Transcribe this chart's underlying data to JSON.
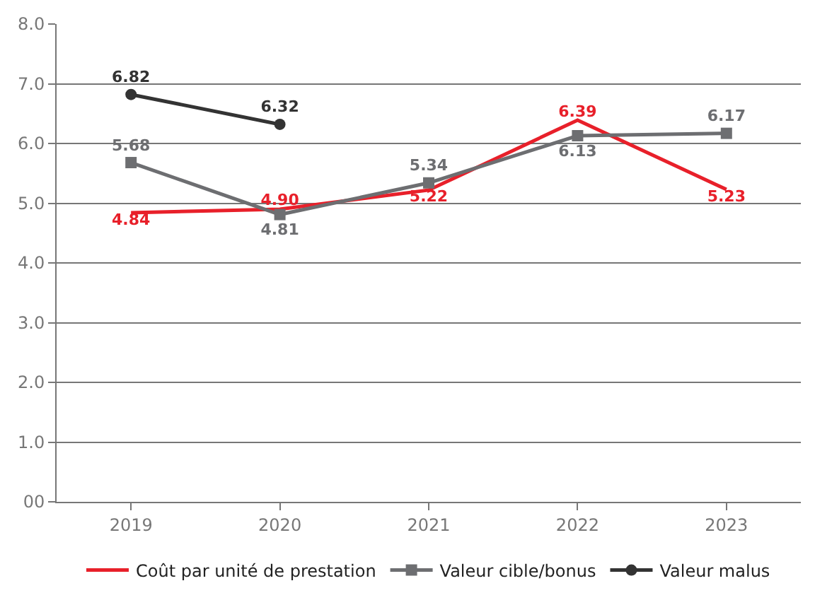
{
  "chart_data": {
    "type": "line",
    "categories": [
      "2019",
      "2020",
      "2021",
      "2022",
      "2023"
    ],
    "series": [
      {
        "name": "Coût par unité de prestation",
        "color": "#e8202a",
        "marker": "none",
        "values": [
          4.84,
          4.9,
          5.22,
          6.39,
          5.23
        ],
        "value_labels": [
          "4.84",
          "4.90",
          "5.22",
          "6.39",
          "5.23"
        ]
      },
      {
        "name": "Valeur cible/bonus",
        "color": "#6d6e71",
        "marker": "square",
        "values": [
          5.68,
          4.81,
          5.34,
          6.13,
          6.17
        ],
        "value_labels": [
          "5.68",
          "4.81",
          "5.34",
          "6.13",
          "6.17"
        ]
      },
      {
        "name": "Valeur malus",
        "color": "#333333",
        "marker": "circle",
        "values": [
          6.82,
          6.32,
          null,
          null,
          null
        ],
        "value_labels": [
          "6.82",
          "6.32",
          null,
          null,
          null
        ]
      }
    ],
    "ylim": [
      0,
      8
    ],
    "yticks": [
      {
        "value": 0,
        "label": "00"
      },
      {
        "value": 1,
        "label": "1.0"
      },
      {
        "value": 2,
        "label": "2.0"
      },
      {
        "value": 3,
        "label": "3.0"
      },
      {
        "value": 4,
        "label": "4.0"
      },
      {
        "value": 5,
        "label": "5.0"
      },
      {
        "value": 6,
        "label": "6.0"
      },
      {
        "value": 7,
        "label": "7.0"
      },
      {
        "value": 8,
        "label": "8.0"
      }
    ],
    "grid": "y",
    "legend": "bottom"
  }
}
